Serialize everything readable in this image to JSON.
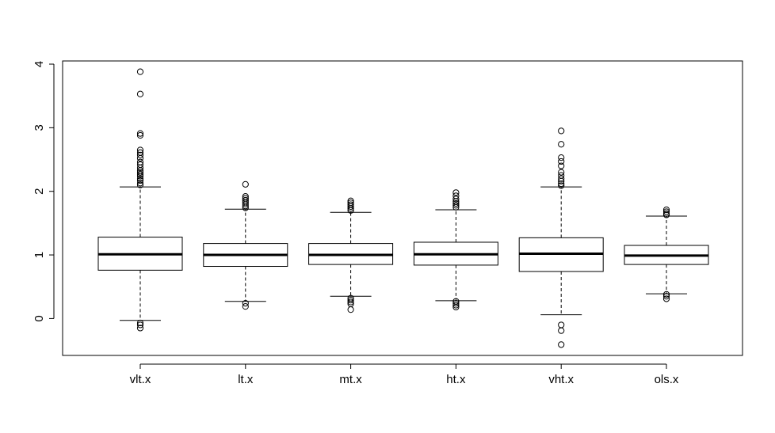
{
  "chart_data": {
    "type": "boxplot",
    "title": "",
    "xlabel": "",
    "ylabel": "",
    "ylim": [
      -0.58,
      4.05
    ],
    "yticks": [
      0,
      1,
      2,
      3,
      4
    ],
    "ytick_labels": [
      "0",
      "1",
      "2",
      "3",
      "4"
    ],
    "grid": false,
    "categories": [
      "vlt.x",
      "lt.x",
      "mt.x",
      "ht.x",
      "vht.x",
      "ols.x"
    ],
    "boxes": [
      {
        "name": "vlt.x",
        "q1": 0.76,
        "median": 1.01,
        "q3": 1.28,
        "whisker_low": -0.03,
        "whisker_high": 2.07,
        "outliers": [
          3.88,
          3.53,
          2.91,
          2.88,
          2.65,
          2.61,
          2.57,
          2.52,
          2.46,
          2.42,
          2.37,
          2.33,
          2.3,
          2.27,
          2.24,
          2.2,
          2.17,
          2.13,
          2.1,
          -0.07,
          -0.1,
          -0.15
        ]
      },
      {
        "name": "lt.x",
        "q1": 0.82,
        "median": 1.0,
        "q3": 1.18,
        "whisker_low": 0.27,
        "whisker_high": 1.72,
        "outliers": [
          2.11,
          1.92,
          1.89,
          1.86,
          1.83,
          1.8,
          1.77,
          1.74,
          0.24,
          0.19
        ]
      },
      {
        "name": "mt.x",
        "q1": 0.85,
        "median": 1.0,
        "q3": 1.18,
        "whisker_low": 0.35,
        "whisker_high": 1.67,
        "outliers": [
          1.85,
          1.82,
          1.79,
          1.76,
          1.73,
          1.7,
          0.32,
          0.29,
          0.26,
          0.23,
          0.14
        ]
      },
      {
        "name": "ht.x",
        "q1": 0.84,
        "median": 1.01,
        "q3": 1.2,
        "whisker_low": 0.28,
        "whisker_high": 1.71,
        "outliers": [
          1.98,
          1.93,
          1.88,
          1.84,
          1.81,
          1.78,
          1.75,
          0.27,
          0.24,
          0.21,
          0.18
        ]
      },
      {
        "name": "vht.x",
        "q1": 0.74,
        "median": 1.02,
        "q3": 1.27,
        "whisker_low": 0.06,
        "whisker_high": 2.07,
        "outliers": [
          2.95,
          2.74,
          2.53,
          2.47,
          2.4,
          2.3,
          2.25,
          2.2,
          2.16,
          2.12,
          2.09,
          -0.1,
          -0.19,
          -0.41
        ]
      },
      {
        "name": "ols.x",
        "q1": 0.85,
        "median": 0.99,
        "q3": 1.15,
        "whisker_low": 0.39,
        "whisker_high": 1.61,
        "outliers": [
          1.71,
          1.68,
          1.65,
          1.63,
          0.38,
          0.35,
          0.31
        ]
      }
    ]
  }
}
